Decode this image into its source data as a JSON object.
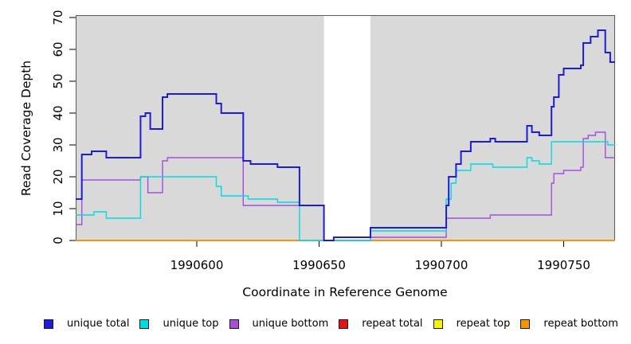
{
  "chart_data": {
    "type": "line",
    "subtype": "step",
    "title": "",
    "xlabel": "Coordinate in Reference Genome",
    "ylabel": "Read Coverage Depth",
    "xlim": [
      1990550.5,
      1990771
    ],
    "ylim": [
      0,
      70.5
    ],
    "x_ticks": [
      1990600,
      1990650,
      1990700,
      1990750
    ],
    "y_ticks": [
      0,
      10,
      20,
      30,
      40,
      50,
      60,
      70
    ],
    "grid": false,
    "legend_position": "bottom",
    "plot_bg": "#d9d9d9",
    "gap_region": {
      "from": 1990652,
      "to": 1990671,
      "color": "#ffffff"
    },
    "draw_order": [
      "repeat total",
      "repeat top",
      "repeat bottom",
      "unique bottom",
      "unique top",
      "unique total"
    ],
    "series": [
      {
        "name": "unique total",
        "color": "#1d1dd8",
        "line_width": 2,
        "points": [
          [
            1990550.5,
            13
          ],
          [
            1990553,
            27
          ],
          [
            1990557,
            28
          ],
          [
            1990563,
            26
          ],
          [
            1990577,
            39
          ],
          [
            1990579,
            40
          ],
          [
            1990581,
            35
          ],
          [
            1990586,
            45
          ],
          [
            1990588,
            46
          ],
          [
            1990608,
            43
          ],
          [
            1990610,
            40
          ],
          [
            1990619,
            25
          ],
          [
            1990622,
            24
          ],
          [
            1990633,
            23
          ],
          [
            1990642,
            11
          ],
          [
            1990652,
            0
          ],
          [
            1990656,
            1
          ],
          [
            1990671,
            4
          ],
          [
            1990702,
            11
          ],
          [
            1990703,
            20
          ],
          [
            1990706,
            24
          ],
          [
            1990708,
            28
          ],
          [
            1990712,
            31
          ],
          [
            1990720,
            32
          ],
          [
            1990722,
            31
          ],
          [
            1990735,
            36
          ],
          [
            1990737,
            34
          ],
          [
            1990740,
            33
          ],
          [
            1990745,
            42
          ],
          [
            1990746,
            45
          ],
          [
            1990748,
            52
          ],
          [
            1990750,
            54
          ],
          [
            1990757,
            55
          ],
          [
            1990758,
            62
          ],
          [
            1990761,
            64
          ],
          [
            1990764,
            66
          ],
          [
            1990767,
            59
          ],
          [
            1990769,
            56
          ]
        ]
      },
      {
        "name": "unique top",
        "color": "#00dce4",
        "line_width": 1.4,
        "points": [
          [
            1990550.5,
            8
          ],
          [
            1990558,
            9
          ],
          [
            1990563,
            7
          ],
          [
            1990577,
            20
          ],
          [
            1990608,
            17
          ],
          [
            1990610,
            14
          ],
          [
            1990621,
            13
          ],
          [
            1990633,
            12
          ],
          [
            1990642,
            0
          ],
          [
            1990671,
            3
          ],
          [
            1990702,
            13
          ],
          [
            1990704,
            18
          ],
          [
            1990706,
            22
          ],
          [
            1990712,
            24
          ],
          [
            1990721,
            23
          ],
          [
            1990735,
            26
          ],
          [
            1990737,
            25
          ],
          [
            1990740,
            24
          ],
          [
            1990745,
            31
          ],
          [
            1990768,
            30
          ]
        ]
      },
      {
        "name": "unique bottom",
        "color": "#a64ddb",
        "line_width": 1.4,
        "points": [
          [
            1990550.5,
            5
          ],
          [
            1990553,
            19
          ],
          [
            1990577,
            20
          ],
          [
            1990580,
            15
          ],
          [
            1990586,
            25
          ],
          [
            1990588,
            26
          ],
          [
            1990619,
            11
          ],
          [
            1990652,
            0
          ],
          [
            1990671,
            1
          ],
          [
            1990702,
            7
          ],
          [
            1990720,
            8
          ],
          [
            1990745,
            18
          ],
          [
            1990746,
            21
          ],
          [
            1990750,
            22
          ],
          [
            1990757,
            23
          ],
          [
            1990758,
            32
          ],
          [
            1990760,
            33
          ],
          [
            1990763,
            34
          ],
          [
            1990767,
            26
          ]
        ]
      },
      {
        "name": "repeat total",
        "color": "#e31414",
        "line_width": 1.4,
        "points": [
          [
            1990550.5,
            0
          ]
        ]
      },
      {
        "name": "repeat top",
        "color": "#f5f500",
        "line_width": 1.4,
        "points": [
          [
            1990550.5,
            0
          ]
        ]
      },
      {
        "name": "repeat bottom",
        "color": "#f79400",
        "line_width": 1.6,
        "points": [
          [
            1990550.5,
            0
          ]
        ]
      }
    ]
  }
}
